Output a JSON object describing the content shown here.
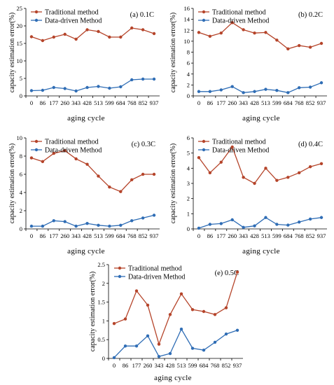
{
  "colors": {
    "traditional": "#B5442A",
    "data_driven": "#2F6DB5"
  },
  "chart_data": [
    {
      "type": "line",
      "panel_label": "(a) 0.1C",
      "xlabel": "aging  cycle",
      "ylabel": "capacity estimation error(%)",
      "categories": [
        "0",
        "86",
        "177",
        "260",
        "343",
        "428",
        "513",
        "599",
        "684",
        "768",
        "852",
        "937"
      ],
      "yticks": [
        "0",
        "5",
        "10",
        "15",
        "20",
        "25"
      ],
      "ylim": [
        0,
        25
      ],
      "legend_position": "top-left",
      "series": [
        {
          "name": "Traditional method",
          "values": [
            16.9,
            15.8,
            16.8,
            17.6,
            16.2,
            18.9,
            18.4,
            16.8,
            16.8,
            19.4,
            18.9,
            17.8
          ]
        },
        {
          "name": "Data-driven Method",
          "values": [
            1.5,
            1.6,
            2.4,
            2.1,
            1.4,
            2.4,
            2.7,
            2.2,
            2.6,
            4.6,
            4.8,
            4.8
          ]
        }
      ]
    },
    {
      "type": "line",
      "panel_label": "(b) 0.2C",
      "xlabel": "aging  cycle",
      "ylabel": "capacity estimation error(%)",
      "categories": [
        "0",
        "86",
        "177",
        "260",
        "343",
        "428",
        "513",
        "599",
        "684",
        "768",
        "852",
        "937"
      ],
      "yticks": [
        "0",
        "2",
        "4",
        "6",
        "8",
        "10",
        "12",
        "14",
        "16"
      ],
      "ylim": [
        0,
        16
      ],
      "legend_position": "top-left",
      "series": [
        {
          "name": "Traditional method",
          "values": [
            11.6,
            10.9,
            11.5,
            13.4,
            12.1,
            11.5,
            11.6,
            10.2,
            8.6,
            9.2,
            8.9,
            9.6
          ]
        },
        {
          "name": "Data-driven Method",
          "values": [
            0.8,
            0.8,
            1.1,
            1.7,
            0.6,
            0.8,
            1.2,
            1.0,
            0.6,
            1.5,
            1.6,
            2.4
          ]
        }
      ]
    },
    {
      "type": "line",
      "panel_label": "(c) 0.3C",
      "xlabel": "aging  cycle",
      "ylabel": "capacity estimation error(%)",
      "categories": [
        "0",
        "86",
        "177",
        "260",
        "343",
        "428",
        "513",
        "599",
        "684",
        "768",
        "852",
        "937"
      ],
      "yticks": [
        "0",
        "2",
        "4",
        "6",
        "8",
        "10"
      ],
      "ylim": [
        0,
        10
      ],
      "legend_position": "top-left",
      "series": [
        {
          "name": "Traditional method",
          "values": [
            7.8,
            7.4,
            8.3,
            8.6,
            7.7,
            7.1,
            5.8,
            4.6,
            4.1,
            5.4,
            6.0,
            6.0
          ]
        },
        {
          "name": "Data-driven Method",
          "values": [
            0.3,
            0.3,
            0.9,
            0.8,
            0.3,
            0.6,
            0.4,
            0.3,
            0.4,
            0.9,
            1.2,
            1.5
          ]
        }
      ]
    },
    {
      "type": "line",
      "panel_label": "(d) 0.4C",
      "xlabel": "aging  cycle",
      "ylabel": "capacity estimation error(%)",
      "categories": [
        "0",
        "86",
        "177",
        "260",
        "343",
        "428",
        "513",
        "599",
        "684",
        "768",
        "852",
        "937"
      ],
      "yticks": [
        "0",
        "1",
        "2",
        "3",
        "4",
        "5",
        "6"
      ],
      "ylim": [
        0,
        6
      ],
      "legend_position": "top-left",
      "series": [
        {
          "name": "Traditional method",
          "values": [
            4.7,
            3.7,
            4.4,
            5.4,
            3.4,
            3.0,
            4.0,
            3.2,
            3.4,
            3.7,
            4.1,
            4.3
          ]
        },
        {
          "name": "Data-driven Method",
          "values": [
            0.05,
            0.3,
            0.35,
            0.6,
            0.1,
            0.2,
            0.75,
            0.3,
            0.25,
            0.45,
            0.65,
            0.75
          ]
        }
      ]
    },
    {
      "type": "line",
      "panel_label": "(e) 0.5C",
      "xlabel": "aging  cycle",
      "ylabel": "capacity estimation error(%)",
      "categories": [
        "0",
        "86",
        "177",
        "260",
        "343",
        "428",
        "513",
        "599",
        "684",
        "768",
        "852",
        "937"
      ],
      "yticks": [
        "0",
        "0.5",
        "1",
        "1.5",
        "2",
        "2.5"
      ],
      "ylim": [
        0,
        2.5
      ],
      "legend_position": "top-left",
      "series": [
        {
          "name": "Traditional method",
          "values": [
            0.93,
            1.05,
            1.8,
            1.42,
            0.38,
            1.17,
            1.72,
            1.3,
            1.25,
            1.17,
            1.35,
            2.3
          ]
        },
        {
          "name": "Data-driven Method",
          "values": [
            0.02,
            0.33,
            0.33,
            0.6,
            0.05,
            0.13,
            0.78,
            0.27,
            0.22,
            0.43,
            0.65,
            0.75
          ]
        }
      ]
    }
  ]
}
